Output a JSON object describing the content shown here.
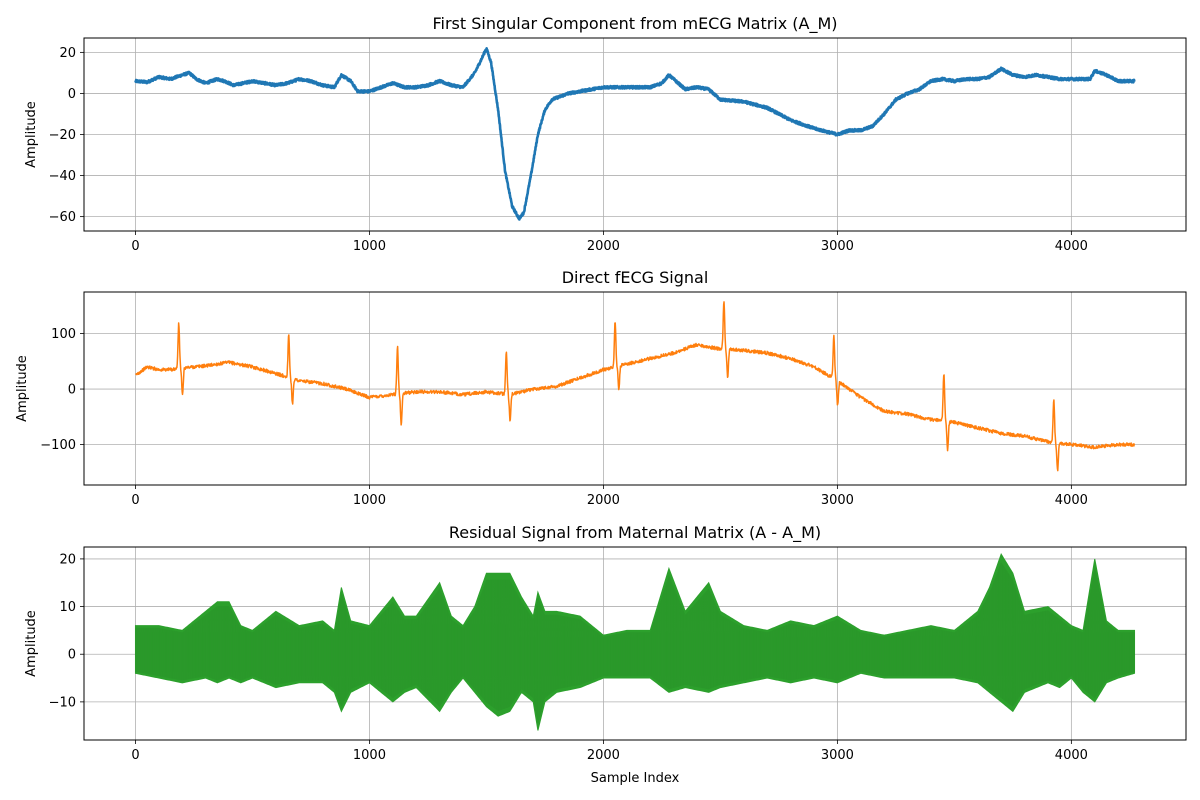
{
  "chart_data": [
    {
      "type": "line",
      "title": "First Singular Component from mECG Matrix (A_M)",
      "xlabel": "",
      "ylabel": "Amplitude",
      "xlim": [
        -220,
        4490
      ],
      "ylim": [
        -67,
        27
      ],
      "xticks": [
        0,
        1000,
        2000,
        3000,
        4000
      ],
      "yticks": [
        20,
        0,
        -20,
        -40,
        -60
      ],
      "grid": true,
      "color": "#1f77b4",
      "stroke": "thick",
      "noise": 0.6,
      "x": [
        0,
        50,
        100,
        150,
        200,
        230,
        260,
        300,
        350,
        380,
        420,
        500,
        550,
        600,
        650,
        700,
        750,
        800,
        850,
        880,
        920,
        950,
        1000,
        1050,
        1100,
        1150,
        1200,
        1250,
        1300,
        1350,
        1400,
        1450,
        1480,
        1500,
        1520,
        1550,
        1580,
        1610,
        1640,
        1660,
        1690,
        1720,
        1750,
        1780,
        1850,
        1950,
        2000,
        2100,
        2200,
        2250,
        2280,
        2300,
        2350,
        2400,
        2450,
        2500,
        2600,
        2700,
        2800,
        2900,
        3000,
        3050,
        3100,
        3150,
        3200,
        3250,
        3300,
        3350,
        3400,
        3450,
        3500,
        3550,
        3600,
        3650,
        3700,
        3750,
        3800,
        3850,
        3900,
        3950,
        4000,
        4050,
        4080,
        4100,
        4150,
        4200,
        4270
      ],
      "y": [
        6,
        5.5,
        8,
        7,
        9,
        10,
        7,
        5,
        7,
        6,
        4,
        6,
        5,
        4,
        5,
        7,
        6,
        4,
        3,
        9,
        6,
        1,
        1,
        3,
        5,
        3,
        3,
        4,
        6,
        4,
        3,
        10,
        17,
        22,
        15,
        -8,
        -38,
        -55,
        -61,
        -58,
        -40,
        -20,
        -8,
        -3,
        0,
        2,
        3,
        3,
        3,
        5,
        9,
        7,
        2,
        3,
        2,
        -3,
        -4,
        -7,
        -13,
        -17,
        -20,
        -18,
        -18,
        -16,
        -10,
        -3,
        0,
        2,
        6,
        7,
        6,
        7,
        7,
        8,
        12,
        9,
        8,
        9,
        8,
        7,
        7,
        7,
        7,
        11,
        9,
        6,
        6
      ]
    },
    {
      "type": "line",
      "title": "Direct fECG Signal",
      "xlabel": "",
      "ylabel": "Amplitude",
      "xlim": [
        -220,
        4490
      ],
      "ylim": [
        -173,
        175
      ],
      "xticks": [
        0,
        1000,
        2000,
        3000,
        4000
      ],
      "yticks": [
        100,
        0,
        -100
      ],
      "grid": true,
      "color": "#ff7f0e",
      "stroke": "thin",
      "noise": 3,
      "x": [
        0,
        50,
        100,
        150,
        200,
        300,
        400,
        500,
        600,
        700,
        800,
        900,
        1000,
        1100,
        1200,
        1300,
        1400,
        1500,
        1600,
        1700,
        1800,
        1900,
        2000,
        2100,
        2200,
        2300,
        2400,
        2500,
        2600,
        2700,
        2800,
        2900,
        3000,
        3100,
        3200,
        3300,
        3400,
        3500,
        3600,
        3700,
        3800,
        3900,
        4000,
        4100,
        4200,
        4270
      ],
      "y": [
        25,
        40,
        35,
        35,
        38,
        42,
        48,
        40,
        28,
        15,
        10,
        0,
        -15,
        -10,
        -5,
        -5,
        -10,
        -5,
        -10,
        0,
        5,
        20,
        35,
        45,
        55,
        65,
        80,
        72,
        70,
        65,
        55,
        40,
        15,
        -15,
        -40,
        -45,
        -55,
        -60,
        -70,
        -80,
        -85,
        -95,
        -100,
        -105,
        -100,
        -100
      ],
      "spikes": [
        {
          "x": 185,
          "up": 80,
          "down": 50
        },
        {
          "x": 655,
          "up": 75,
          "down": 45
        },
        {
          "x": 1120,
          "up": 85,
          "down": 55
        },
        {
          "x": 1585,
          "up": 75,
          "down": 45
        },
        {
          "x": 2050,
          "up": 80,
          "down": 40
        },
        {
          "x": 2515,
          "up": 85,
          "down": 50
        },
        {
          "x": 2985,
          "up": 75,
          "down": 45
        },
        {
          "x": 3455,
          "up": 85,
          "down": 50
        },
        {
          "x": 3925,
          "up": 75,
          "down": 50
        }
      ]
    },
    {
      "type": "area",
      "title": "Residual Signal from Maternal Matrix (A - A_M)",
      "xlabel": "Sample Index",
      "ylabel": "Amplitude",
      "xlim": [
        -220,
        4490
      ],
      "ylim": [
        -18,
        22.5
      ],
      "xticks": [
        0,
        1000,
        2000,
        3000,
        4000
      ],
      "yticks": [
        20,
        10,
        0,
        -10
      ],
      "grid": true,
      "color": "#2ca02c",
      "center": 0.5,
      "x": [
        0,
        100,
        200,
        300,
        350,
        400,
        450,
        500,
        600,
        700,
        800,
        850,
        880,
        920,
        1000,
        1050,
        1100,
        1150,
        1200,
        1300,
        1350,
        1400,
        1450,
        1500,
        1550,
        1600,
        1650,
        1700,
        1720,
        1750,
        1800,
        1900,
        2000,
        2100,
        2200,
        2280,
        2350,
        2450,
        2500,
        2600,
        2700,
        2800,
        2900,
        3000,
        3100,
        3200,
        3300,
        3400,
        3500,
        3600,
        3650,
        3700,
        3750,
        3800,
        3900,
        3950,
        4000,
        4050,
        4100,
        4150,
        4200,
        4270
      ],
      "upper": [
        6,
        6,
        5,
        9,
        11,
        11,
        6,
        5,
        9,
        6,
        7,
        5,
        14,
        7,
        6,
        9,
        12,
        8,
        8,
        15,
        8,
        6,
        10,
        17,
        17,
        17,
        12,
        8,
        13,
        9,
        9,
        8,
        4,
        5,
        5,
        18,
        9,
        15,
        9,
        6,
        5,
        7,
        6,
        8,
        5,
        4,
        5,
        6,
        5,
        9,
        14,
        21,
        17,
        9,
        10,
        8,
        6,
        5,
        20,
        7,
        5,
        5
      ],
      "lower": [
        -4,
        -5,
        -6,
        -5,
        -6,
        -5,
        -6,
        -5,
        -7,
        -6,
        -6,
        -8,
        -12,
        -8,
        -6,
        -8,
        -10,
        -8,
        -7,
        -12,
        -8,
        -5,
        -8,
        -11,
        -13,
        -12,
        -8,
        -10,
        -16,
        -10,
        -8,
        -7,
        -5,
        -5,
        -5,
        -8,
        -7,
        -8,
        -7,
        -6,
        -5,
        -6,
        -5,
        -6,
        -4,
        -5,
        -5,
        -5,
        -5,
        -6,
        -8,
        -10,
        -12,
        -8,
        -6,
        -7,
        -5,
        -8,
        -10,
        -6,
        -5,
        -4
      ]
    }
  ]
}
